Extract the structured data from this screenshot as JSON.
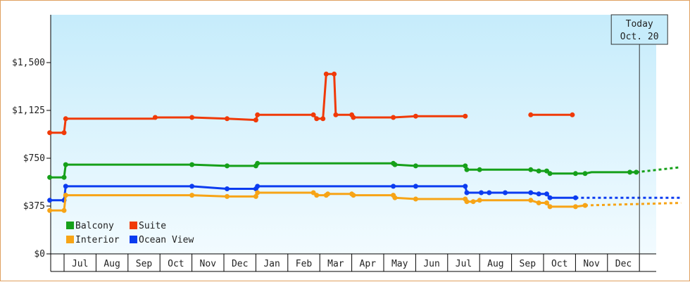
{
  "colors": {
    "balcony": "#16a01a",
    "suite": "#f03a08",
    "interior": "#f7a416",
    "ocean_view": "#0c3cf0",
    "plot_bg_top": "#c6ecfb",
    "plot_bg_bottom": "#f2fbff"
  },
  "today_marker": {
    "line1": "Today",
    "line2": "Oct. 20",
    "x": 18.0
  },
  "chart_data": {
    "type": "line",
    "title": "",
    "xlabel": "",
    "ylabel": "",
    "x_unit": "months (index 0 = start of Jul)",
    "ylim": [
      0,
      1875
    ],
    "xlim": [
      -0.45,
      19.3
    ],
    "y_ticks": [
      0,
      375,
      750,
      1125,
      1500
    ],
    "y_tick_labels": [
      "$0",
      "$375",
      "$750",
      "$1,125",
      "$1,500"
    ],
    "x_tick_labels": [
      "Jul",
      "Aug",
      "Sep",
      "Oct",
      "Nov",
      "Dec",
      "Jan",
      "Feb",
      "Mar",
      "Apr",
      "May",
      "Jun",
      "Jul",
      "Aug",
      "Sep",
      "Oct",
      "Nov",
      "Dec"
    ],
    "grid": false,
    "legend": "bottom-left",
    "series": [
      {
        "key": "balcony",
        "name": "Balcony",
        "segments": [
          [
            [
              -0.45,
              600
            ],
            [
              0.0,
              600
            ],
            [
              0.05,
              700
            ],
            [
              4.0,
              700
            ],
            [
              5.1,
              690
            ],
            [
              6.0,
              690
            ],
            [
              6.05,
              710
            ],
            [
              10.3,
              710
            ],
            [
              10.35,
              700
            ],
            [
              11.0,
              690
            ],
            [
              12.55,
              690
            ],
            [
              12.6,
              660
            ],
            [
              13.0,
              660
            ],
            [
              14.6,
              660
            ],
            [
              14.85,
              650
            ],
            [
              15.1,
              650
            ],
            [
              15.2,
              630
            ],
            [
              16.0,
              630
            ],
            [
              16.3,
              630
            ],
            [
              16.5,
              640
            ],
            [
              17.7,
              640
            ],
            [
              17.9,
              640
            ]
          ]
        ],
        "projection": [
          [
            17.9,
            640
          ],
          [
            19.3,
            680
          ]
        ]
      },
      {
        "key": "suite",
        "name": "Suite",
        "segments": [
          [
            [
              -0.45,
              950
            ],
            [
              0.0,
              950
            ],
            [
              0.05,
              1060
            ],
            [
              2.8,
              1060
            ],
            [
              2.85,
              1070
            ],
            [
              4.0,
              1070
            ],
            [
              5.1,
              1060
            ],
            [
              6.0,
              1050
            ],
            [
              6.05,
              1090
            ],
            [
              7.8,
              1090
            ],
            [
              7.9,
              1060
            ],
            [
              8.1,
              1060
            ],
            [
              8.2,
              1410
            ],
            [
              8.45,
              1410
            ],
            [
              8.5,
              1090
            ],
            [
              9.0,
              1090
            ],
            [
              9.05,
              1070
            ],
            [
              10.3,
              1070
            ],
            [
              11.0,
              1080
            ],
            [
              12.55,
              1080
            ]
          ],
          [
            [
              14.6,
              1090
            ],
            [
              15.9,
              1090
            ]
          ]
        ],
        "projection": []
      },
      {
        "key": "ocean_view",
        "name": "Ocean View",
        "segments": [
          [
            [
              -0.45,
              420
            ],
            [
              0.0,
              420
            ],
            [
              0.05,
              530
            ],
            [
              4.0,
              530
            ],
            [
              5.1,
              510
            ],
            [
              6.0,
              510
            ],
            [
              6.05,
              530
            ],
            [
              10.3,
              530
            ],
            [
              11.0,
              530
            ],
            [
              12.55,
              530
            ],
            [
              12.6,
              480
            ],
            [
              13.05,
              480
            ],
            [
              13.3,
              480
            ],
            [
              13.8,
              480
            ],
            [
              14.6,
              480
            ],
            [
              14.85,
              470
            ],
            [
              15.1,
              470
            ],
            [
              15.2,
              440
            ],
            [
              16.0,
              440
            ]
          ]
        ],
        "projection": [
          [
            16.0,
            440
          ],
          [
            19.3,
            440
          ]
        ]
      },
      {
        "key": "interior",
        "name": "Interior",
        "segments": [
          [
            [
              -0.45,
              340
            ],
            [
              0.0,
              340
            ],
            [
              0.05,
              460
            ],
            [
              4.0,
              460
            ],
            [
              5.1,
              450
            ],
            [
              6.0,
              450
            ],
            [
              6.05,
              480
            ],
            [
              7.8,
              480
            ],
            [
              7.9,
              460
            ],
            [
              8.2,
              460
            ],
            [
              8.25,
              470
            ],
            [
              9.0,
              470
            ],
            [
              9.05,
              460
            ],
            [
              10.3,
              460
            ],
            [
              10.35,
              440
            ],
            [
              11.0,
              430
            ],
            [
              12.55,
              430
            ],
            [
              12.6,
              410
            ],
            [
              12.8,
              410
            ],
            [
              13.0,
              420
            ],
            [
              14.6,
              420
            ],
            [
              14.85,
              400
            ],
            [
              15.1,
              400
            ],
            [
              15.2,
              370
            ],
            [
              16.0,
              370
            ],
            [
              16.3,
              380
            ]
          ]
        ],
        "projection": [
          [
            16.3,
            380
          ],
          [
            19.3,
            400
          ]
        ]
      }
    ],
    "markers": {
      "balcony": [
        [
          -0.45,
          600
        ],
        [
          0.0,
          600
        ],
        [
          0.05,
          700
        ],
        [
          4.0,
          700
        ],
        [
          5.1,
          690
        ],
        [
          6.0,
          690
        ],
        [
          6.05,
          710
        ],
        [
          10.3,
          710
        ],
        [
          10.35,
          700
        ],
        [
          11.0,
          690
        ],
        [
          12.55,
          690
        ],
        [
          12.6,
          660
        ],
        [
          13.0,
          660
        ],
        [
          14.6,
          660
        ],
        [
          14.85,
          650
        ],
        [
          15.1,
          650
        ],
        [
          15.2,
          630
        ],
        [
          16.0,
          630
        ],
        [
          16.3,
          630
        ],
        [
          17.7,
          640
        ],
        [
          17.9,
          640
        ]
      ],
      "suite": [
        [
          -0.45,
          950
        ],
        [
          0.0,
          950
        ],
        [
          0.05,
          1060
        ],
        [
          2.85,
          1070
        ],
        [
          4.0,
          1070
        ],
        [
          5.1,
          1060
        ],
        [
          6.0,
          1050
        ],
        [
          6.05,
          1090
        ],
        [
          7.8,
          1090
        ],
        [
          7.9,
          1060
        ],
        [
          8.1,
          1060
        ],
        [
          8.2,
          1410
        ],
        [
          8.45,
          1410
        ],
        [
          8.5,
          1090
        ],
        [
          9.0,
          1090
        ],
        [
          9.05,
          1070
        ],
        [
          10.3,
          1070
        ],
        [
          11.0,
          1080
        ],
        [
          12.55,
          1080
        ],
        [
          14.6,
          1090
        ],
        [
          15.9,
          1090
        ]
      ],
      "ocean_view": [
        [
          -0.45,
          420
        ],
        [
          0.0,
          420
        ],
        [
          0.05,
          530
        ],
        [
          4.0,
          530
        ],
        [
          5.1,
          510
        ],
        [
          6.0,
          510
        ],
        [
          6.05,
          530
        ],
        [
          10.3,
          530
        ],
        [
          11.0,
          530
        ],
        [
          12.55,
          530
        ],
        [
          12.6,
          480
        ],
        [
          13.05,
          480
        ],
        [
          13.3,
          480
        ],
        [
          13.8,
          480
        ],
        [
          14.6,
          480
        ],
        [
          14.85,
          470
        ],
        [
          15.1,
          470
        ],
        [
          15.2,
          440
        ],
        [
          16.0,
          440
        ]
      ],
      "interior": [
        [
          -0.45,
          340
        ],
        [
          0.0,
          340
        ],
        [
          0.05,
          460
        ],
        [
          4.0,
          460
        ],
        [
          5.1,
          450
        ],
        [
          6.0,
          450
        ],
        [
          6.05,
          480
        ],
        [
          7.8,
          480
        ],
        [
          7.9,
          460
        ],
        [
          8.2,
          460
        ],
        [
          8.25,
          470
        ],
        [
          9.0,
          470
        ],
        [
          9.05,
          460
        ],
        [
          10.3,
          460
        ],
        [
          10.35,
          440
        ],
        [
          11.0,
          430
        ],
        [
          12.55,
          430
        ],
        [
          12.6,
          410
        ],
        [
          12.8,
          410
        ],
        [
          13.0,
          420
        ],
        [
          14.6,
          420
        ],
        [
          14.85,
          400
        ],
        [
          15.1,
          400
        ],
        [
          15.2,
          370
        ],
        [
          16.0,
          370
        ],
        [
          16.3,
          380
        ]
      ]
    }
  },
  "legend": {
    "items": [
      {
        "key": "balcony",
        "label": "Balcony"
      },
      {
        "key": "suite",
        "label": "Suite"
      },
      {
        "key": "interior",
        "label": "Interior"
      },
      {
        "key": "ocean_view",
        "label": "Ocean View"
      }
    ]
  }
}
